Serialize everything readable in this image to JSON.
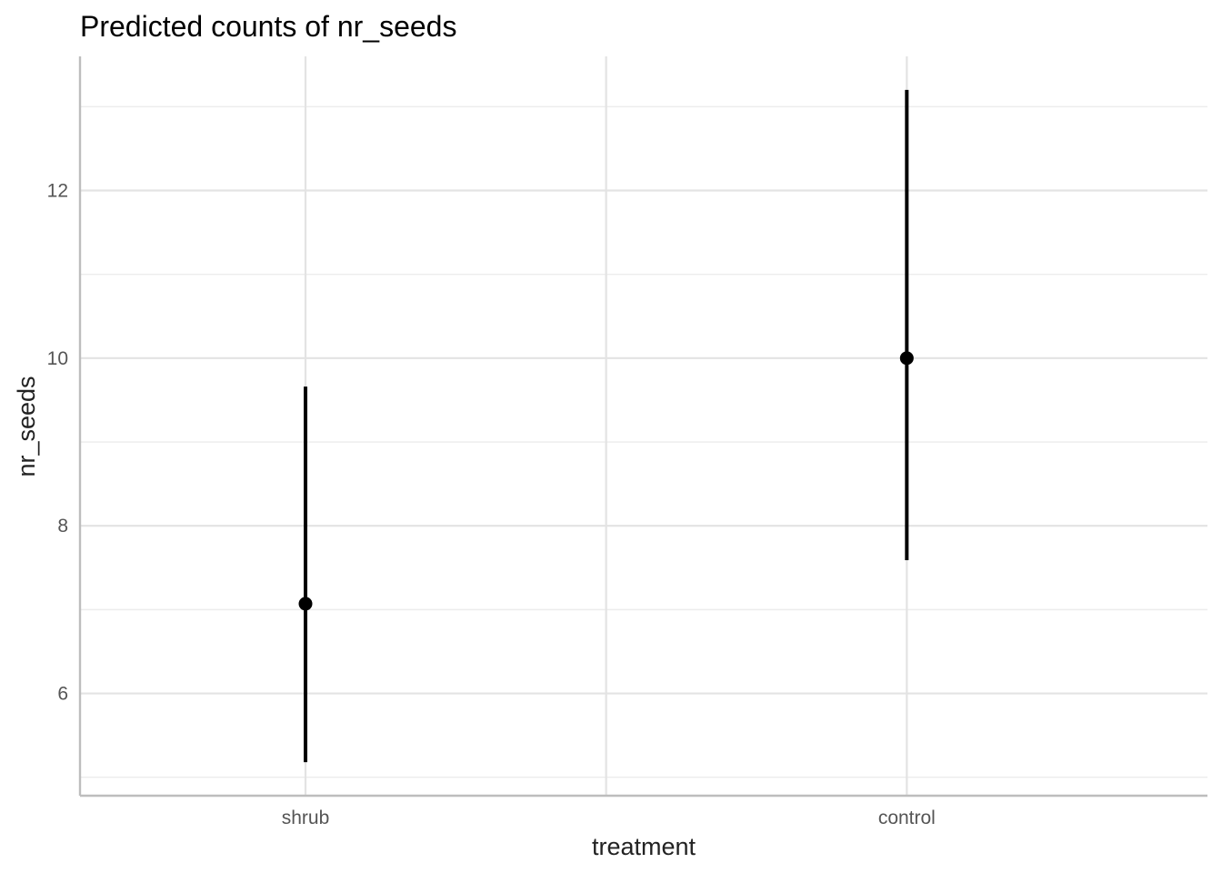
{
  "chart_data": {
    "type": "scatter",
    "title": "Predicted counts of nr_seeds",
    "xlabel": "treatment",
    "ylabel": "nr_seeds",
    "categories": [
      "shrub",
      "",
      "control"
    ],
    "category_tick_labels": [
      "shrub",
      "control"
    ],
    "points": [
      {
        "category": "shrub",
        "y": 7.07,
        "ymin": 5.18,
        "ymax": 9.66
      },
      {
        "category": "control",
        "y": 10.0,
        "ymin": 7.59,
        "ymax": 13.2
      }
    ],
    "y_ticks": [
      6,
      8,
      10,
      12
    ],
    "y_minor_ticks": [
      5,
      7,
      9,
      11,
      13
    ],
    "ylim": [
      4.78,
      13.6
    ],
    "grid": true,
    "legend": "none",
    "colors": {
      "point": "#000000",
      "grid": "#e3e3e3",
      "axis": "#bdbdbd"
    }
  }
}
